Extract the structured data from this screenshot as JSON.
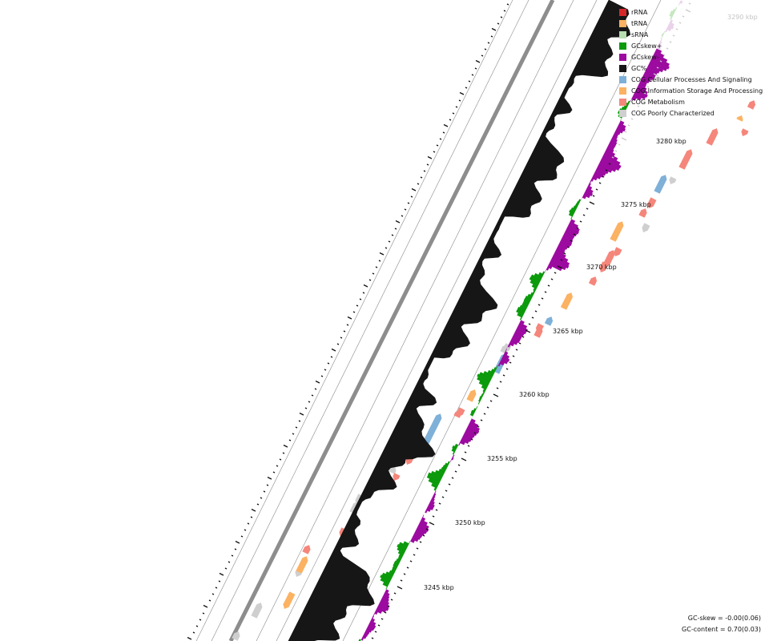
{
  "legend": [
    {
      "label": "rRNA",
      "color": "#d62728"
    },
    {
      "label": "tRNA",
      "color": "#fbb262"
    },
    {
      "label": "sRNA",
      "color": "#b7ddb0"
    },
    {
      "label": "GCskew+",
      "color": "#0b9a0b"
    },
    {
      "label": "GCskew-",
      "color": "#9c0aa0"
    },
    {
      "label": "GC%",
      "color": "#161616"
    },
    {
      "label": "COG Cellular Processes And Signaling",
      "color": "#7eb0d8"
    },
    {
      "label": "COG Information Storage And Processing",
      "color": "#fbb262"
    },
    {
      "label": "COG Metabolism",
      "color": "#f5867b"
    },
    {
      "label": "COG Poorly Characterized",
      "color": "#cfcfcf"
    }
  ],
  "axis": {
    "labels": [
      "3245 kbp",
      "3250 kbp",
      "3255 kbp",
      "3260 kbp",
      "3265 kbp",
      "3270 kbp",
      "3275 kbp",
      "3280 kbp",
      "3290 kbp"
    ]
  },
  "stats": {
    "gc_skew": "GC-skew = -0.00(0.06)",
    "gc_content": "GC-content = 0.70(0.03)"
  }
}
